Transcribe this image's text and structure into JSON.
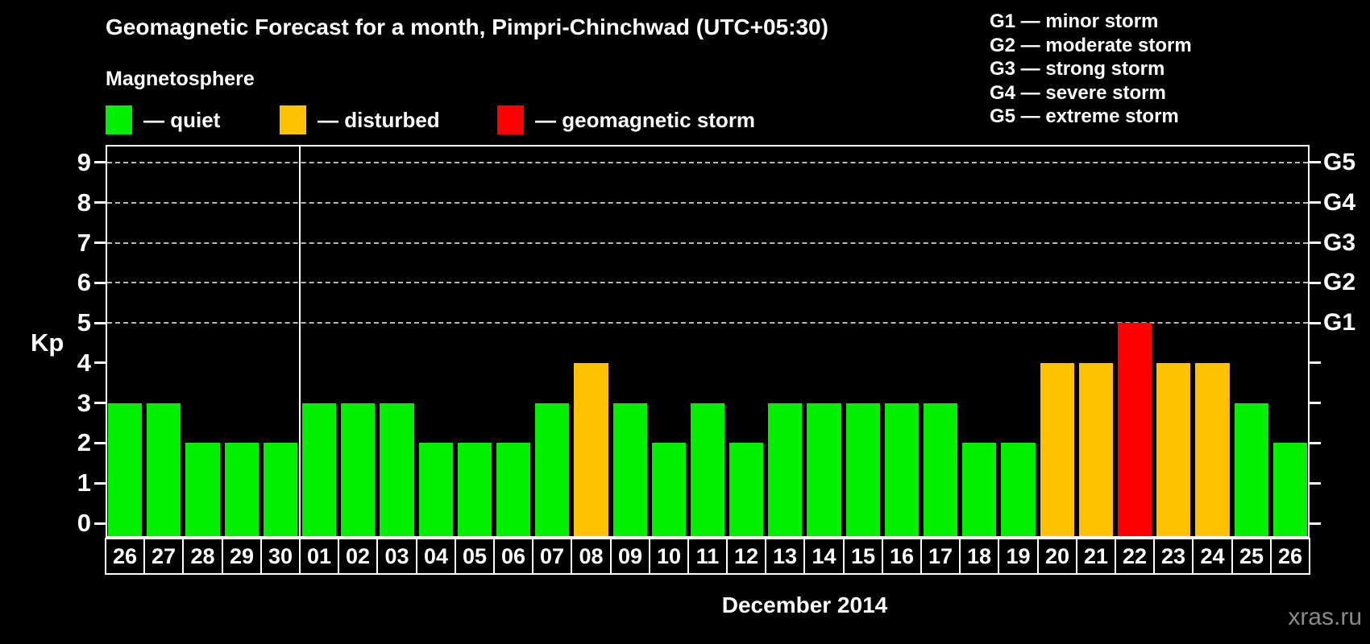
{
  "page": {
    "title": "Geomagnetic Forecast for a month, Pimpri-Chinchwad (UTC+05:30)",
    "subtitle": "Magnetosphere",
    "watermark": "xras.ru"
  },
  "legend": {
    "items": [
      {
        "name": "quiet",
        "label": "— quiet",
        "color": "#00F000"
      },
      {
        "name": "disturbed",
        "label": "— disturbed",
        "color": "#FFC200"
      },
      {
        "name": "geomagnetic-storm",
        "label": "— geomagnetic storm",
        "color": "#FF0000"
      }
    ]
  },
  "storm_scale_legend": {
    "lines": [
      "G1 — minor storm",
      "G2 — moderate storm",
      "G3 — strong storm",
      "G4 — severe storm",
      "G5 — extreme storm"
    ]
  },
  "chart_data": {
    "type": "bar",
    "title": "Geomagnetic Forecast for a month, Pimpri-Chinchwad (UTC+05:30)",
    "ylabel": "Kp",
    "xlabel": "December 2014",
    "ylim": [
      0,
      9
    ],
    "yticks": [
      0,
      1,
      2,
      3,
      4,
      5,
      6,
      7,
      8,
      9
    ],
    "grid_levels": [
      5,
      6,
      7,
      8,
      9
    ],
    "grid_style": "dashed horizontal lines at Kp 5 through 9 only",
    "right_axis_labels": [
      {
        "kp": 5,
        "label": "G1"
      },
      {
        "kp": 6,
        "label": "G2"
      },
      {
        "kp": 7,
        "label": "G3"
      },
      {
        "kp": 8,
        "label": "G4"
      },
      {
        "kp": 9,
        "label": "G5"
      }
    ],
    "colors": {
      "quiet": "#00F000",
      "disturbed": "#FFC200",
      "storm": "#FF0000"
    },
    "color_rules": {
      "quiet_max": 3,
      "disturbed_value": 4,
      "storm_min": 5
    },
    "month_separator_after_index": 4,
    "categories": [
      "26",
      "27",
      "28",
      "29",
      "30",
      "01",
      "02",
      "03",
      "04",
      "05",
      "06",
      "07",
      "08",
      "09",
      "10",
      "11",
      "12",
      "13",
      "14",
      "15",
      "16",
      "17",
      "18",
      "19",
      "20",
      "21",
      "22",
      "23",
      "24",
      "25",
      "26"
    ],
    "values": [
      3,
      3,
      2,
      2,
      2,
      3,
      3,
      3,
      2,
      2,
      2,
      3,
      4,
      3,
      2,
      3,
      2,
      3,
      3,
      3,
      3,
      3,
      2,
      2,
      4,
      4,
      5,
      4,
      4,
      3,
      2
    ]
  }
}
